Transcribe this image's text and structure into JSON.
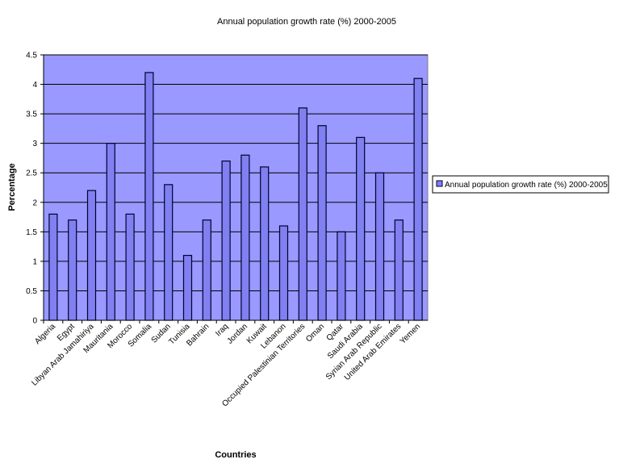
{
  "chart_data": {
    "type": "bar",
    "title": "Annual population growth rate (%) 2000-2005",
    "xlabel": "Countries",
    "ylabel": "Percentage",
    "ylim": [
      0,
      4.5
    ],
    "ytick_labels": [
      "0",
      "0.5",
      "1",
      "1.5",
      "2",
      "2.5",
      "3",
      "3.5",
      "4",
      "4.5"
    ],
    "grid": true,
    "legend_position": "right",
    "categories": [
      "Algeria",
      "Egypt",
      "Libyan Arab Jamahiriya",
      "Mauritania",
      "Morocco",
      "Somalia",
      "Sudan",
      "Tunisia",
      "Bahrain",
      "Iraq",
      "Jordan",
      "Kuwait",
      "Lebanon",
      "Occupied Palestinian Territories",
      "Oman",
      "Qatar",
      "Saudi Arabia",
      "Syrian Arab Republic",
      "United Arab Emirates",
      "Yemen"
    ],
    "series": [
      {
        "name": "Annual population growth rate (%) 2000-2005",
        "values": [
          1.8,
          1.7,
          2.2,
          3.0,
          1.8,
          4.2,
          2.3,
          1.1,
          1.7,
          2.7,
          2.8,
          2.6,
          1.6,
          3.6,
          3.3,
          1.5,
          3.1,
          2.5,
          1.7,
          4.1
        ]
      }
    ],
    "colors": {
      "plot_background": "#9999ff",
      "bar_fill": "#8080f0",
      "bar_outline": "#000033",
      "gridline": "#000000"
    }
  }
}
